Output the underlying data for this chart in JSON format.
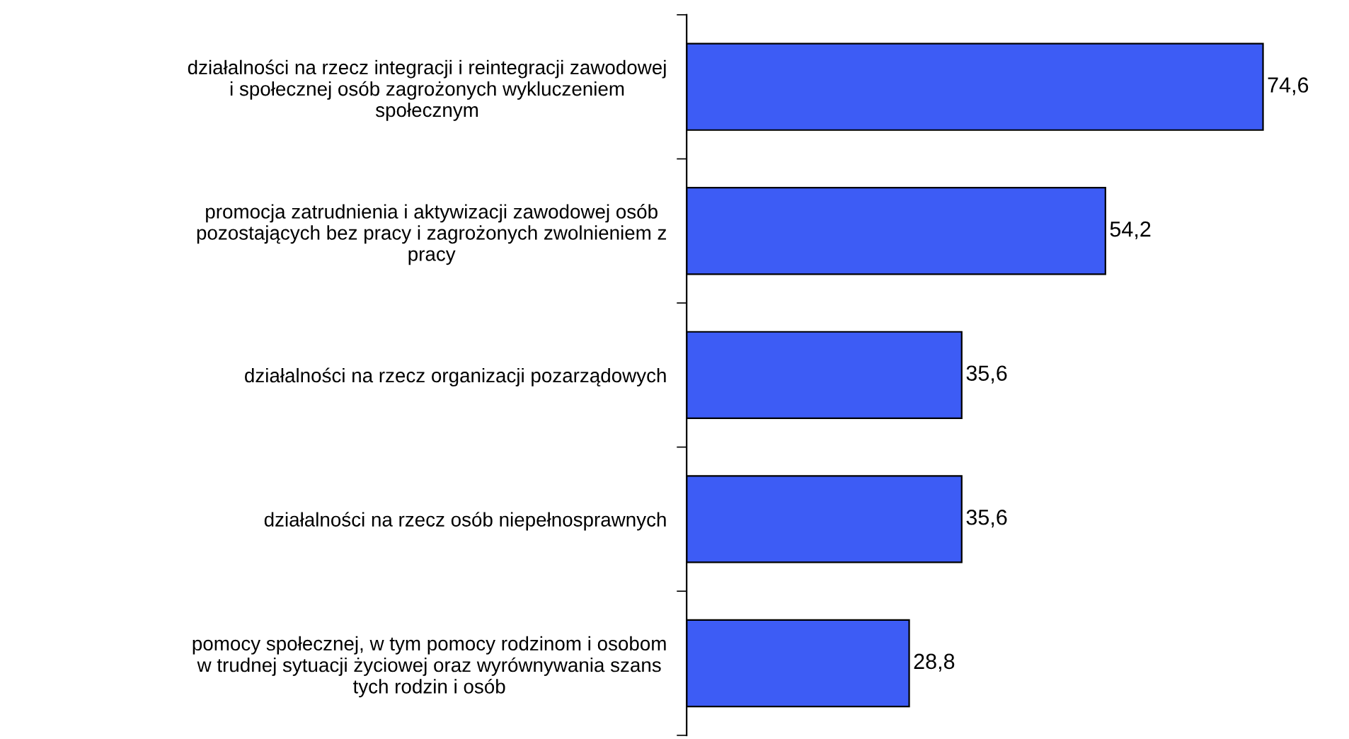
{
  "chart_data": {
    "type": "bar",
    "orientation": "horizontal",
    "categories": [
      "działalności na rzecz integracji i reintegracji zawodowej\ni społecznej osób zagrożonych wykluczeniem\nspołecznym",
      "promocja zatrudnienia i aktywizacji zawodowej osób\npozostających bez pracy i zagrożonych zwolnieniem z\npracy",
      "działalności na rzecz organizacji pozarządowych",
      "działalności na rzecz osób niepełnosprawnych",
      "pomocy społecznej, w tym pomocy rodzinom i osobom\nw trudnej sytuacji życiowej oraz wyrównywania szans\ntych rodzin i osób"
    ],
    "values": [
      74.6,
      54.2,
      35.6,
      35.6,
      28.8
    ],
    "color": "#3d5cf5",
    "value_labels": [
      "74,6",
      "54,2",
      "35,6",
      "35,6",
      "28,8"
    ],
    "tick_labels": "y",
    "grid": false
  }
}
